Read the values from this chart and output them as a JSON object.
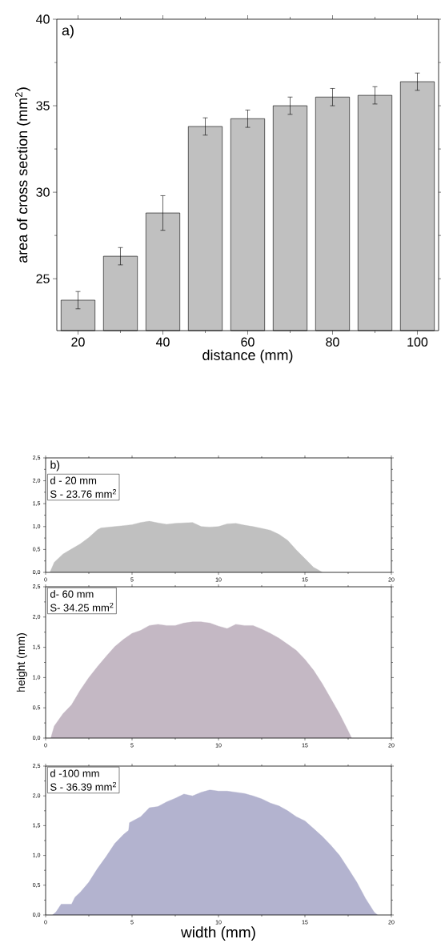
{
  "chart_data": [
    {
      "type": "bar",
      "title": "a)",
      "xlabel": "distance (mm)",
      "ylabel": "area of cross section (mm$^{2}$)",
      "x": [
        20,
        30,
        40,
        50,
        60,
        70,
        80,
        90,
        100
      ],
      "values": [
        23.76,
        26.3,
        28.8,
        33.8,
        34.25,
        35.0,
        35.5,
        35.6,
        36.39
      ],
      "errors": [
        0.5,
        0.5,
        1.0,
        0.5,
        0.5,
        0.5,
        0.5,
        0.5,
        0.5
      ],
      "color": "#c0c0c0",
      "xlim": [
        15,
        105
      ],
      "xticks": [
        20,
        40,
        60,
        80,
        100
      ],
      "ylim": [
        22,
        40
      ],
      "yticks": [
        25,
        30,
        35,
        40
      ]
    },
    {
      "type": "area",
      "title": "b)",
      "annotations": [
        "d - 20 mm",
        "S - 23.76 mm$^{2}$"
      ],
      "color": "#c0c0c0",
      "x": [
        0.25,
        0.5,
        1.0,
        1.5,
        2.0,
        2.5,
        3.0,
        3.2,
        4.0,
        4.5,
        5.0,
        5.5,
        6.0,
        6.5,
        7.0,
        7.5,
        8.0,
        8.5,
        9.0,
        9.5,
        10.0,
        10.5,
        11.0,
        11.5,
        12.0,
        12.5,
        13.0,
        13.5,
        14.0,
        14.5,
        15.0,
        15.5,
        15.8,
        16.0
      ],
      "values": [
        0,
        0.22,
        0.4,
        0.51,
        0.62,
        0.76,
        0.93,
        0.97,
        1.0,
        1.02,
        1.04,
        1.09,
        1.12,
        1.08,
        1.05,
        1.07,
        1.08,
        1.09,
        1.0,
        0.99,
        1.0,
        1.06,
        1.07,
        1.03,
        1.0,
        0.96,
        0.92,
        0.83,
        0.7,
        0.49,
        0.3,
        0.11,
        0.05,
        0
      ],
      "xlim": [
        0,
        20
      ],
      "xticks": [
        0,
        5,
        10,
        15,
        20
      ],
      "ylim": [
        0,
        2.5
      ],
      "yticks": [
        {
          "value": 0,
          "label": "0,0"
        },
        {
          "value": 0.5,
          "label": "0,5"
        },
        {
          "value": 1,
          "label": "1,0"
        },
        {
          "value": 1.5,
          "label": "1,5"
        },
        {
          "value": 2,
          "label": "2,0"
        },
        {
          "value": 2.5,
          "label": "2,5"
        }
      ]
    },
    {
      "type": "area",
      "ylabel": "height (mm)",
      "annotations": [
        "d- 60 mm",
        "S- 34.25 mm$^{2}$"
      ],
      "color": "#c4b8c4",
      "x": [
        0.3,
        0.5,
        1.0,
        1.5,
        2.0,
        2.5,
        3.0,
        3.5,
        4.0,
        4.5,
        5.0,
        5.5,
        6.0,
        6.5,
        7.0,
        7.5,
        8.0,
        8.5,
        9.0,
        9.5,
        10.0,
        10.5,
        11.0,
        11.5,
        12.0,
        12.5,
        13.0,
        13.5,
        14.0,
        14.5,
        15.0,
        15.5,
        16.0,
        16.5,
        17.0,
        17.5,
        17.7
      ],
      "values": [
        0,
        0.2,
        0.4,
        0.55,
        0.79,
        1.0,
        1.18,
        1.35,
        1.51,
        1.63,
        1.73,
        1.78,
        1.86,
        1.88,
        1.86,
        1.86,
        1.9,
        1.92,
        1.92,
        1.9,
        1.85,
        1.81,
        1.88,
        1.86,
        1.86,
        1.8,
        1.73,
        1.65,
        1.55,
        1.45,
        1.3,
        1.12,
        0.9,
        0.65,
        0.4,
        0.12,
        0
      ],
      "xlim": [
        0,
        20
      ],
      "xticks": [
        0,
        5,
        10,
        15,
        20
      ],
      "ylim": [
        0,
        2.5
      ],
      "yticks": [
        {
          "value": 0,
          "label": "0,0"
        },
        {
          "value": 0.5,
          "label": "0,5"
        },
        {
          "value": 1,
          "label": "1,0"
        },
        {
          "value": 1.5,
          "label": "1,5"
        },
        {
          "value": 2,
          "label": "2,0"
        },
        {
          "value": 2.5,
          "label": "2,5"
        }
      ]
    },
    {
      "type": "area",
      "xlabel": "width (mm)",
      "annotations": [
        "d -100 mm",
        "S - 36.39 mm$^{2}$"
      ],
      "color": "#b3b3cf",
      "x": [
        0.4,
        0.6,
        0.9,
        1.5,
        1.7,
        2.0,
        2.5,
        3.0,
        3.5,
        4.0,
        4.5,
        4.8,
        4.85,
        5.5,
        6.0,
        6.5,
        7.0,
        7.5,
        8.0,
        8.5,
        9.0,
        9.5,
        10.0,
        10.5,
        11.0,
        11.5,
        12.0,
        12.5,
        13.0,
        13.5,
        14.0,
        14.5,
        15.0,
        15.5,
        16.0,
        16.5,
        17.0,
        17.5,
        18.0,
        18.5,
        19.0,
        19.2
      ],
      "values": [
        0,
        0.05,
        0.18,
        0.18,
        0.3,
        0.38,
        0.55,
        0.78,
        0.98,
        1.2,
        1.35,
        1.42,
        1.55,
        1.65,
        1.8,
        1.82,
        1.9,
        1.96,
        2.03,
        2.0,
        2.06,
        2.1,
        2.08,
        2.08,
        2.06,
        2.04,
        2.0,
        1.95,
        1.88,
        1.83,
        1.75,
        1.65,
        1.58,
        1.45,
        1.32,
        1.17,
        1.0,
        0.78,
        0.55,
        0.28,
        0.05,
        0
      ],
      "xlim": [
        0,
        20
      ],
      "xticks": [
        0,
        5,
        10,
        15,
        20
      ],
      "ylim": [
        0,
        2.5
      ],
      "yticks": [
        {
          "value": 0,
          "label": "0,0"
        },
        {
          "value": 0.5,
          "label": "0,5"
        },
        {
          "value": 1,
          "label": "1,0"
        },
        {
          "value": 1.5,
          "label": "1,5"
        },
        {
          "value": 2,
          "label": "2,0"
        },
        {
          "value": 2.5,
          "label": "2,5"
        }
      ]
    }
  ]
}
